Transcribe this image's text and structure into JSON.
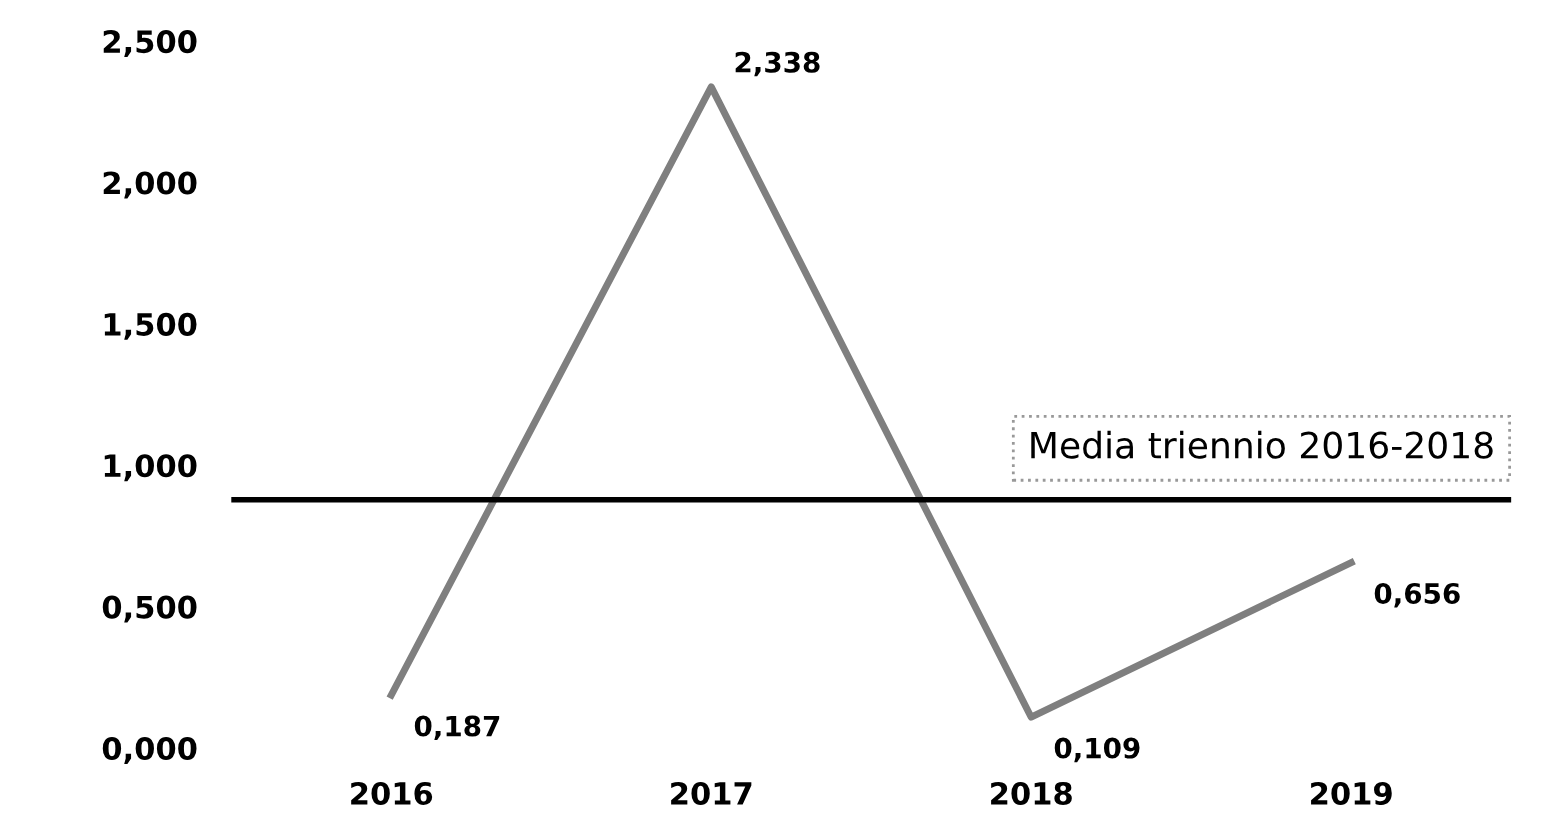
{
  "chart_data": {
    "type": "line",
    "categories": [
      "2016",
      "2017",
      "2018",
      "2019"
    ],
    "series": [
      {
        "color": "#7f7f7f",
        "values": [
          0.187,
          2.338,
          0.109,
          0.656
        ],
        "value_labels": [
          "0,187",
          "2,338",
          "0,109",
          "0,656"
        ]
      }
    ],
    "ylim": [
      0,
      2.5
    ],
    "yticks": [
      {
        "value": 0,
        "label": "0,000"
      },
      {
        "value": 0.5,
        "label": "0,500"
      },
      {
        "value": 1,
        "label": "1,000"
      },
      {
        "value": 1.5,
        "label": "1,500"
      },
      {
        "value": 2,
        "label": "2,000"
      },
      {
        "value": 2.5,
        "label": "2,500"
      }
    ],
    "ref_lines": [
      {
        "axis": "y",
        "value": 0.878,
        "label": "Media triennio 2016-2018",
        "color": "#000000"
      }
    ],
    "grid": false,
    "legend": false,
    "marker": "none",
    "line_style": "solid"
  }
}
